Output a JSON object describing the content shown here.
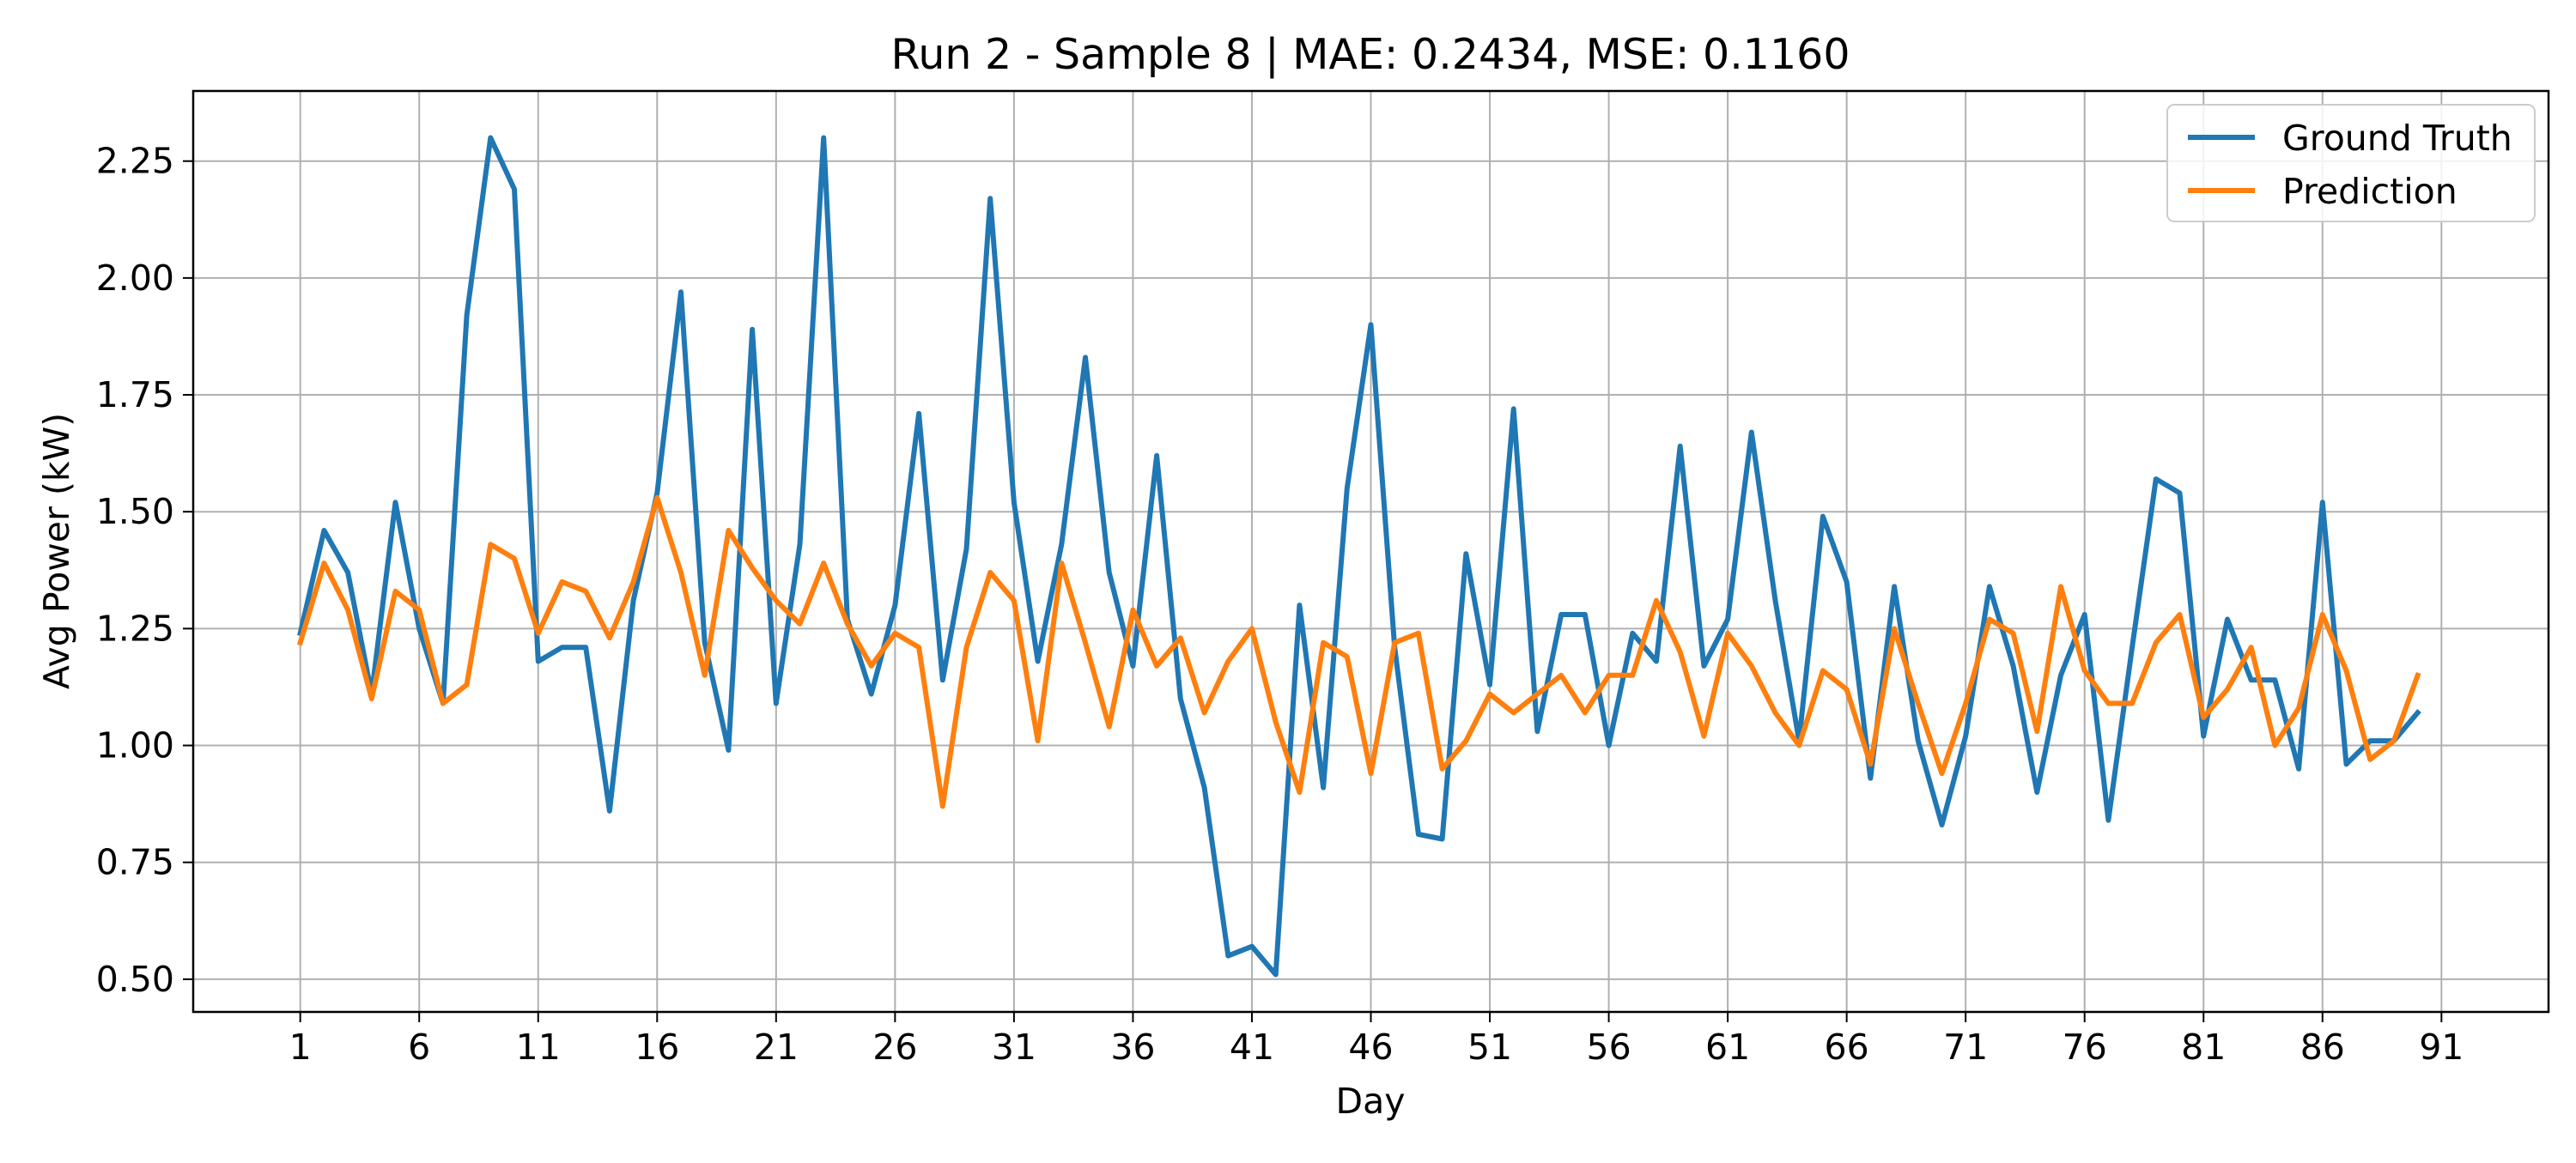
{
  "chart_data": {
    "type": "line",
    "title": "Run 2 - Sample 8 | MAE: 0.2434, MSE: 0.1160",
    "xlabel": "Day",
    "ylabel": "Avg Power (kW)",
    "xlim": [
      -3.5,
      95.5
    ],
    "ylim": [
      0.43,
      2.4
    ],
    "xticks": [
      1,
      6,
      11,
      16,
      21,
      26,
      31,
      36,
      41,
      46,
      51,
      56,
      61,
      66,
      71,
      76,
      81,
      86,
      91
    ],
    "yticks": [
      0.5,
      0.75,
      1.0,
      1.25,
      1.5,
      1.75,
      2.0,
      2.25
    ],
    "ytick_labels": [
      "0.50",
      "0.75",
      "1.00",
      "1.25",
      "1.50",
      "1.75",
      "2.00",
      "2.25"
    ],
    "grid": true,
    "legend_position": "top-right",
    "x": [
      1,
      2,
      3,
      4,
      5,
      6,
      7,
      8,
      9,
      10,
      11,
      12,
      13,
      14,
      15,
      16,
      17,
      18,
      19,
      20,
      21,
      22,
      23,
      24,
      25,
      26,
      27,
      28,
      29,
      30,
      31,
      32,
      33,
      34,
      35,
      36,
      37,
      38,
      39,
      40,
      41,
      42,
      43,
      44,
      45,
      46,
      47,
      48,
      49,
      50,
      51,
      52,
      53,
      54,
      55,
      56,
      57,
      58,
      59,
      60,
      61,
      62,
      63,
      64,
      65,
      66,
      67,
      68,
      69,
      70,
      71,
      72,
      73,
      74,
      75,
      76,
      77,
      78,
      79,
      80,
      81,
      82,
      83,
      84,
      85,
      86,
      87,
      88,
      89,
      90
    ],
    "series": [
      {
        "name": "Ground Truth",
        "color": "#1f77b4",
        "values": [
          1.24,
          1.46,
          1.37,
          1.11,
          1.52,
          1.25,
          1.09,
          1.92,
          2.3,
          2.19,
          1.18,
          1.21,
          1.21,
          0.86,
          1.31,
          1.54,
          1.97,
          1.22,
          0.99,
          1.89,
          1.09,
          1.43,
          2.3,
          1.27,
          1.11,
          1.3,
          1.71,
          1.14,
          1.42,
          2.17,
          1.52,
          1.18,
          1.43,
          1.83,
          1.37,
          1.17,
          1.62,
          1.1,
          0.91,
          0.55,
          0.57,
          0.51,
          1.3,
          0.91,
          1.55,
          1.9,
          1.21,
          0.81,
          0.8,
          1.41,
          1.13,
          1.72,
          1.03,
          1.28,
          1.28,
          1.0,
          1.24,
          1.18,
          1.64,
          1.17,
          1.27,
          1.67,
          1.31,
          1.01,
          1.49,
          1.35,
          0.93,
          1.34,
          1.01,
          0.83,
          1.02,
          1.34,
          1.17,
          0.9,
          1.15,
          1.28,
          0.84,
          1.21,
          1.57,
          1.54,
          1.02,
          1.27,
          1.14,
          1.14,
          0.95,
          1.52,
          0.96,
          1.01,
          1.01,
          1.07
        ]
      },
      {
        "name": "Prediction",
        "color": "#ff7f0e",
        "values": [
          1.22,
          1.39,
          1.29,
          1.1,
          1.33,
          1.29,
          1.09,
          1.13,
          1.43,
          1.4,
          1.24,
          1.35,
          1.33,
          1.23,
          1.35,
          1.53,
          1.37,
          1.15,
          1.46,
          1.38,
          1.31,
          1.26,
          1.39,
          1.26,
          1.17,
          1.24,
          1.21,
          0.87,
          1.21,
          1.37,
          1.31,
          1.01,
          1.39,
          1.22,
          1.04,
          1.29,
          1.17,
          1.23,
          1.07,
          1.18,
          1.25,
          1.05,
          0.9,
          1.22,
          1.19,
          0.94,
          1.22,
          1.24,
          0.95,
          1.01,
          1.11,
          1.07,
          1.11,
          1.15,
          1.07,
          1.15,
          1.15,
          1.31,
          1.2,
          1.02,
          1.24,
          1.17,
          1.07,
          1.0,
          1.16,
          1.12,
          0.96,
          1.25,
          1.09,
          0.94,
          1.09,
          1.27,
          1.24,
          1.03,
          1.34,
          1.16,
          1.09,
          1.09,
          1.22,
          1.28,
          1.06,
          1.12,
          1.21,
          1.0,
          1.08,
          1.28,
          1.16,
          0.97,
          1.01,
          1.15
        ]
      }
    ]
  }
}
